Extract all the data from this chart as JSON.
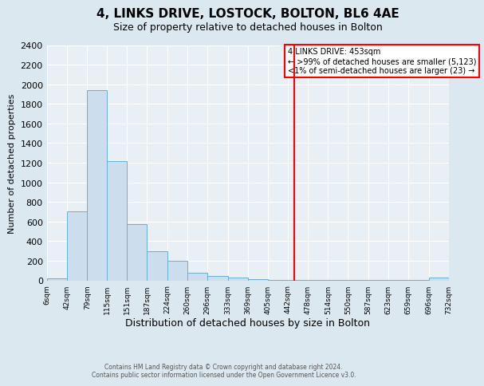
{
  "title": "4, LINKS DRIVE, LOSTOCK, BOLTON, BL6 4AE",
  "subtitle": "Size of property relative to detached houses in Bolton",
  "xlabel": "Distribution of detached houses by size in Bolton",
  "ylabel": "Number of detached properties",
  "bin_edges": [
    6,
    42,
    79,
    115,
    151,
    187,
    224,
    260,
    296,
    333,
    369,
    405,
    442,
    478,
    514,
    550,
    587,
    623,
    659,
    696,
    732
  ],
  "bar_heights": [
    18,
    700,
    1940,
    1220,
    575,
    300,
    200,
    80,
    45,
    30,
    10,
    4,
    4,
    4,
    4,
    2,
    2,
    2,
    2,
    28
  ],
  "bar_color": "#ccdded",
  "bar_edge_color": "#6aafd6",
  "vline_x": 453,
  "vline_color": "red",
  "legend_title": "4 LINKS DRIVE: 453sqm",
  "legend_line1": "← >99% of detached houses are smaller (5,123)",
  "legend_line2": "<1% of semi-detached houses are larger (23) →",
  "ylim": [
    0,
    2400
  ],
  "yticks": [
    0,
    200,
    400,
    600,
    800,
    1000,
    1200,
    1400,
    1600,
    1800,
    2000,
    2200,
    2400
  ],
  "xtick_labels": [
    "6sqm",
    "42sqm",
    "79sqm",
    "115sqm",
    "151sqm",
    "187sqm",
    "224sqm",
    "260sqm",
    "296sqm",
    "333sqm",
    "369sqm",
    "405sqm",
    "442sqm",
    "478sqm",
    "514sqm",
    "550sqm",
    "587sqm",
    "623sqm",
    "659sqm",
    "696sqm",
    "732sqm"
  ],
  "footer_line1": "Contains HM Land Registry data © Crown copyright and database right 2024.",
  "footer_line2": "Contains public sector information licensed under the Open Government Licence v3.0.",
  "bg_color": "#dce8f0",
  "plot_bg_color": "#e8f0f6",
  "grid_color": "#ffffff",
  "title_fontsize": 11,
  "subtitle_fontsize": 9,
  "ylabel_fontsize": 8,
  "xlabel_fontsize": 9,
  "ytick_fontsize": 8,
  "xtick_fontsize": 6.5
}
